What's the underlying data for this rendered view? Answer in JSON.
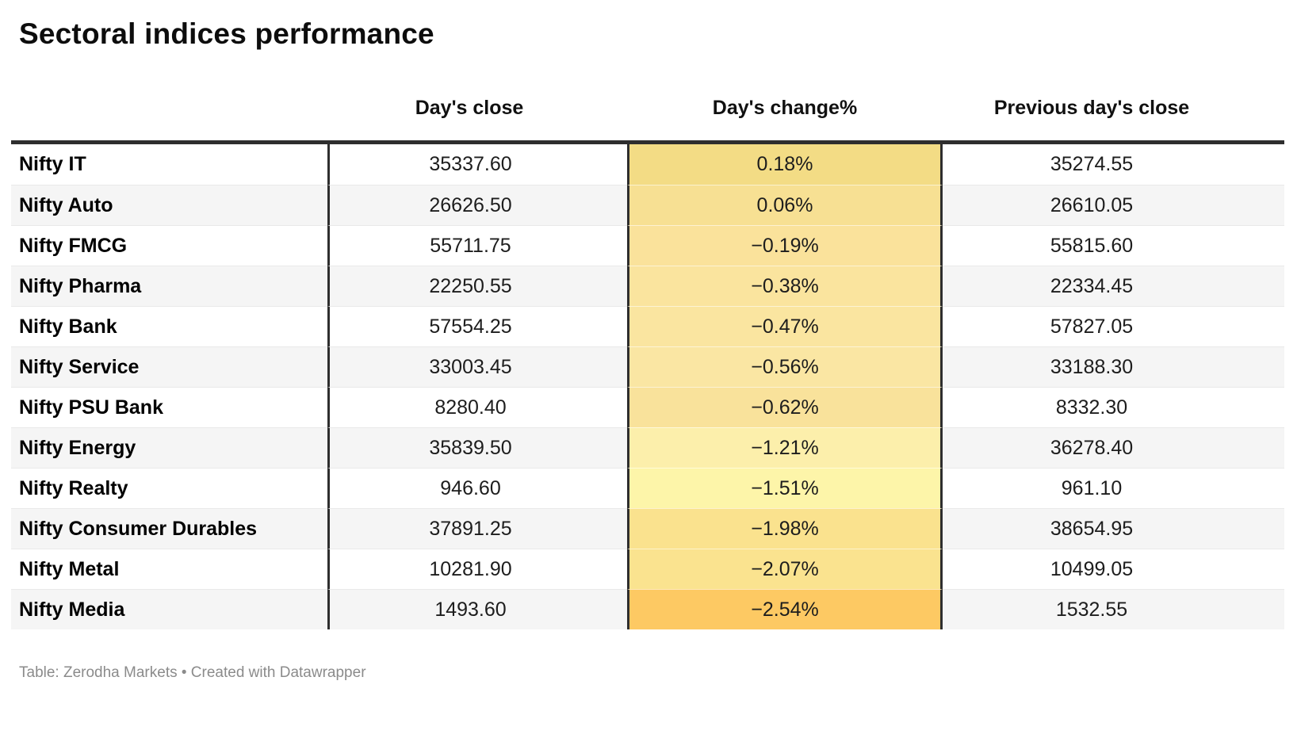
{
  "title": "Sectoral indices performance",
  "table": {
    "columns": {
      "label": "",
      "close": "Day's close",
      "change": "Day's change%",
      "prev": "Previous day's close"
    },
    "rows": [
      {
        "label": "Nifty IT",
        "close": "35337.60",
        "change": "0.18%",
        "prev": "35274.55",
        "change_bg": "#f3dc85"
      },
      {
        "label": "Nifty Auto",
        "close": "26626.50",
        "change": "0.06%",
        "prev": "26610.05",
        "change_bg": "#f7e093"
      },
      {
        "label": "Nifty FMCG",
        "close": "55711.75",
        "change": "−0.19%",
        "prev": "55815.60",
        "change_bg": "#fae29b"
      },
      {
        "label": "Nifty Pharma",
        "close": "22250.55",
        "change": "−0.38%",
        "prev": "22334.45",
        "change_bg": "#fae49e"
      },
      {
        "label": "Nifty Bank",
        "close": "57554.25",
        "change": "−0.47%",
        "prev": "57827.05",
        "change_bg": "#fae5a0"
      },
      {
        "label": "Nifty Service",
        "close": "33003.45",
        "change": "−0.56%",
        "prev": "33188.30",
        "change_bg": "#fae6a3"
      },
      {
        "label": "Nifty PSU Bank",
        "close": "8280.40",
        "change": "−0.62%",
        "prev": "8332.30",
        "change_bg": "#f9e29b"
      },
      {
        "label": "Nifty Energy",
        "close": "35839.50",
        "change": "−1.21%",
        "prev": "36278.40",
        "change_bg": "#fcefab"
      },
      {
        "label": "Nifty Realty",
        "close": "946.60",
        "change": "−1.51%",
        "prev": "961.10",
        "change_bg": "#fdf5a9"
      },
      {
        "label": "Nifty Consumer Durables",
        "close": "37891.25",
        "change": "−1.98%",
        "prev": "38654.95",
        "change_bg": "#fae28e"
      },
      {
        "label": "Nifty Metal",
        "close": "10281.90",
        "change": "−2.07%",
        "prev": "10499.05",
        "change_bg": "#fae38f"
      },
      {
        "label": "Nifty Media",
        "close": "1493.60",
        "change": "−2.54%",
        "prev": "1532.55",
        "change_bg": "#fdc963"
      }
    ]
  },
  "footer": "Table: Zerodha Markets • Created with Datawrapper",
  "colors": {
    "header_border": "#2e2e2e",
    "column_divider": "#2e2e2e",
    "alt_row_bg": "#f5f5f5",
    "row_separator": "#e9e9e9",
    "footer_text": "#8b8b8b",
    "body_text": "#1d1d1d"
  },
  "chart_data": {
    "type": "table",
    "title": "Sectoral indices performance",
    "columns": [
      "",
      "Day's close",
      "Day's change%",
      "Previous day's close"
    ],
    "rows": [
      [
        "Nifty IT",
        35337.6,
        0.18,
        35274.55
      ],
      [
        "Nifty Auto",
        26626.5,
        0.06,
        26610.05
      ],
      [
        "Nifty FMCG",
        55711.75,
        -0.19,
        55815.6
      ],
      [
        "Nifty Pharma",
        22250.55,
        -0.38,
        22334.45
      ],
      [
        "Nifty Bank",
        57554.25,
        -0.47,
        57827.05
      ],
      [
        "Nifty Service",
        33003.45,
        -0.56,
        33188.3
      ],
      [
        "Nifty PSU Bank",
        8280.4,
        -0.62,
        8332.3
      ],
      [
        "Nifty Energy",
        35839.5,
        -1.21,
        36278.4
      ],
      [
        "Nifty Realty",
        946.6,
        -1.51,
        961.1
      ],
      [
        "Nifty Consumer Durables",
        37891.25,
        -1.98,
        38654.95
      ],
      [
        "Nifty Metal",
        10281.9,
        -2.07,
        10499.05
      ],
      [
        "Nifty Media",
        1493.6,
        -2.54,
        1532.55
      ]
    ],
    "heatmap_column": "Day's change%",
    "heatmap_range": {
      "min_value": -2.54,
      "max_value": 0.18,
      "min_color": "#fdc963",
      "mid_color": "#fdf5a9",
      "max_color": "#f3dc85"
    },
    "source": "Table: Zerodha Markets • Created with Datawrapper"
  }
}
